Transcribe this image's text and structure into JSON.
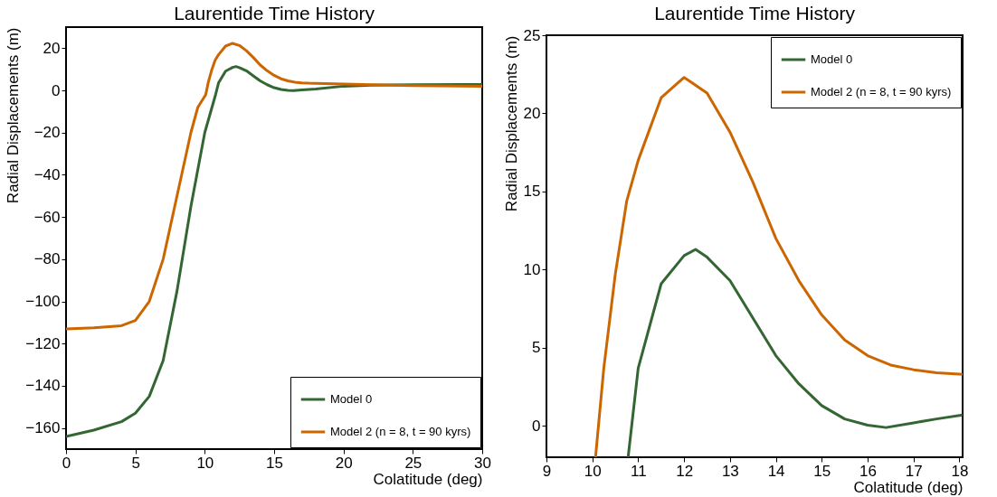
{
  "chart_data": [
    {
      "type": "line",
      "title": "Laurentide Time History",
      "xlabel": "Colatitude (deg)",
      "ylabel": "Radial Displacements (m)",
      "xlim": [
        0,
        30
      ],
      "xticks": [
        0,
        5,
        10,
        15,
        20,
        25,
        30
      ],
      "ylim": [
        -170,
        30
      ],
      "yticks": [
        -160,
        -140,
        -120,
        -100,
        -80,
        -60,
        -40,
        -20,
        0,
        20
      ],
      "legend": "bottom right",
      "series": [
        {
          "name": "Model 0",
          "color": "#336633",
          "x": [
            0,
            2,
            4,
            5,
            6,
            7,
            8,
            9,
            10,
            10.78,
            11,
            11.5,
            12,
            12.25,
            12.5,
            13,
            13.5,
            14,
            14.5,
            15,
            15.5,
            16,
            16.4,
            17,
            17.5,
            18,
            20,
            22,
            25,
            30
          ],
          "values": [
            -164,
            -161,
            -157,
            -153,
            -145,
            -128,
            -95,
            -55,
            -20,
            -2,
            3.7,
            9.1,
            10.9,
            11.3,
            10.8,
            9.3,
            6.9,
            4.5,
            2.7,
            1.3,
            0.45,
            0.05,
            -0.1,
            0.2,
            0.45,
            0.7,
            2,
            2.5,
            2.7,
            2.8
          ]
        },
        {
          "name": "Model 2 (n = 8, t = 90 kyrs)",
          "color": "#cc6600",
          "x": [
            0,
            2,
            4,
            5,
            6,
            7,
            8,
            9,
            9.5,
            10.07,
            10.25,
            10.5,
            10.75,
            11,
            11.5,
            12,
            12.5,
            13,
            13.5,
            14,
            14.5,
            15,
            15.5,
            16,
            16.5,
            17,
            17.5,
            18,
            20,
            22,
            25,
            30
          ],
          "values": [
            -113,
            -112.5,
            -111.5,
            -109,
            -100,
            -80,
            -50,
            -20,
            -8,
            -2,
            3.7,
            9.7,
            14.4,
            17,
            21,
            22.3,
            21.3,
            18.8,
            15.6,
            12,
            9.3,
            7.1,
            5.5,
            4.5,
            3.9,
            3.6,
            3.4,
            3.3,
            3,
            2.7,
            2.3,
            2
          ]
        }
      ]
    },
    {
      "type": "line",
      "title": "Laurentide Time History",
      "xlabel": "Colatitude (deg)",
      "ylabel": "Radial Displacements (m)",
      "xlim": [
        9,
        18.07
      ],
      "xticks": [
        9,
        10,
        11,
        12,
        13,
        14,
        15,
        16,
        17,
        18
      ],
      "ylim": [
        -2,
        25
      ],
      "yticks": [
        0,
        5,
        10,
        15,
        20,
        25
      ],
      "legend": "top right",
      "series": [
        {
          "name": "Model 0",
          "color": "#336633",
          "x": [
            10.78,
            11,
            11.5,
            12,
            12.25,
            12.5,
            13,
            13.5,
            14,
            14.5,
            15,
            15.5,
            16,
            16.4,
            17,
            17.5,
            18.07
          ],
          "values": [
            -2,
            3.7,
            9.1,
            10.9,
            11.3,
            10.8,
            9.3,
            6.9,
            4.5,
            2.7,
            1.3,
            0.45,
            0.05,
            -0.1,
            0.2,
            0.45,
            0.7
          ]
        },
        {
          "name": "Model 2 (n = 8, t = 90 kyrs)",
          "color": "#cc6600",
          "x": [
            10.07,
            10.25,
            10.5,
            10.75,
            11,
            11.5,
            12,
            12.5,
            13,
            13.5,
            14,
            14.5,
            15,
            15.5,
            16,
            16.5,
            17,
            17.5,
            18.07
          ],
          "values": [
            -2,
            3.7,
            9.7,
            14.4,
            17,
            21,
            22.3,
            21.3,
            18.8,
            15.6,
            12,
            9.3,
            7.1,
            5.5,
            4.5,
            3.9,
            3.6,
            3.4,
            3.3
          ]
        }
      ]
    }
  ]
}
